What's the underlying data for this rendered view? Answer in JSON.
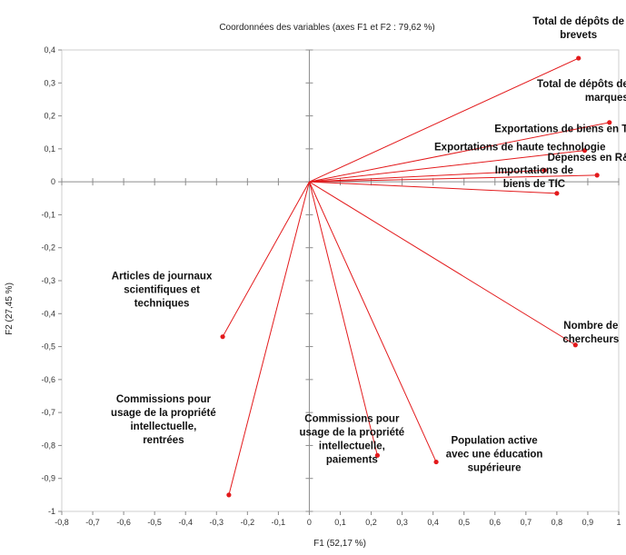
{
  "chart_data": {
    "type": "scatter",
    "title": "Coordonnées des variables (axes F1 et F2 : 79,62 %)",
    "xlabel": "F1 (52,17 %)",
    "ylabel": "F2 (27,45 %)",
    "xlim": [
      -0.8,
      1
    ],
    "ylim": [
      -1,
      0.4
    ],
    "x_ticks": [
      "-0,8",
      "-0,7",
      "-0,6",
      "-0,5",
      "-0,4",
      "-0,3",
      "-0,2",
      "-0,1",
      "0",
      "0,1",
      "0,2",
      "0,3",
      "0,4",
      "0,5",
      "0,6",
      "0,7",
      "0,8",
      "0,9",
      "1"
    ],
    "y_ticks": [
      "0,4",
      "0,3",
      "0,2",
      "0,1",
      "0",
      "-0,1",
      "-0,2",
      "-0,3",
      "-0,4",
      "-0,5",
      "-0,6",
      "-0,7",
      "-0,8",
      "-0,9",
      "-1"
    ],
    "grid": false,
    "series_color": "#e31a1c",
    "points": [
      {
        "label": [
          "Total de dépôts de",
          "brevets"
        ],
        "x": 0.87,
        "y": 0.375
      },
      {
        "label": [
          "Total de dépôts de",
          "marques"
        ],
        "x": 0.97,
        "y": 0.18
      },
      {
        "label": [
          "Exportations de biens en TIC"
        ],
        "x": 0.89,
        "y": 0.095
      },
      {
        "label": [
          "Exportations de haute technologie"
        ],
        "x": 0.76,
        "y": 0.035
      },
      {
        "label": [
          "Dépenses en R&D"
        ],
        "x": 0.93,
        "y": 0.02
      },
      {
        "label": [
          "Importations de",
          "biens de TIC"
        ],
        "x": 0.8,
        "y": -0.035
      },
      {
        "label": [
          "Nombre de",
          "chercheurs"
        ],
        "x": 0.86,
        "y": -0.495
      },
      {
        "label": [
          "Articles de journaux",
          "scientifiques et",
          "techniques"
        ],
        "x": -0.28,
        "y": -0.47
      },
      {
        "label": [
          "Commissions pour",
          "usage de la propriété",
          "intellectuelle,",
          "rentrées"
        ],
        "x": -0.26,
        "y": -0.95
      },
      {
        "label": [
          "Commissions pour",
          "usage de la propriété",
          "intellectuelle,",
          "paiements"
        ],
        "x": 0.22,
        "y": -0.83
      },
      {
        "label": [
          "Population active",
          "avec une éducation",
          "supérieure"
        ],
        "x": 0.41,
        "y": -0.85
      }
    ]
  }
}
